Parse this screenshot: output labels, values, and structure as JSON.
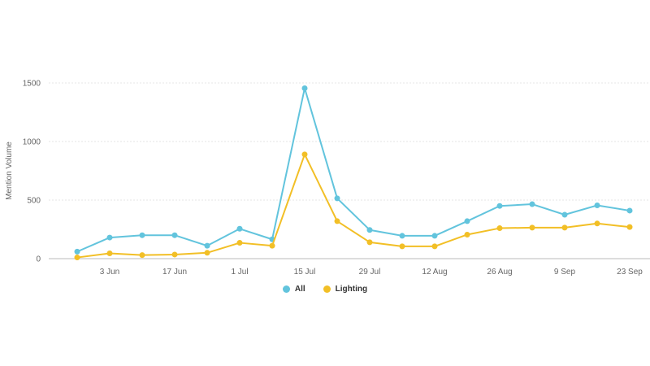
{
  "chart_data": {
    "type": "line",
    "title": "",
    "xlabel": "",
    "ylabel": "Mention Volume",
    "ylim": [
      0,
      1500
    ],
    "yticks": [
      0,
      500,
      1000,
      1500
    ],
    "x_tick_labels": [
      "3 Jun",
      "17 Jun",
      "1 Jul",
      "15 Jul",
      "29 Jul",
      "12 Aug",
      "26 Aug",
      "9 Sep",
      "23 Sep"
    ],
    "grid": "horizontal",
    "legend_placement": "bottom-center",
    "points_count": 18,
    "series": [
      {
        "name": "All",
        "color": "#62c4dd",
        "values": [
          60,
          180,
          200,
          200,
          110,
          255,
          165,
          1455,
          515,
          245,
          195,
          195,
          320,
          450,
          465,
          375,
          455,
          410
        ]
      },
      {
        "name": "Lighting",
        "color": "#f2bf26",
        "values": [
          10,
          45,
          30,
          35,
          50,
          135,
          110,
          890,
          320,
          140,
          105,
          105,
          205,
          260,
          265,
          265,
          300,
          270
        ]
      }
    ]
  }
}
